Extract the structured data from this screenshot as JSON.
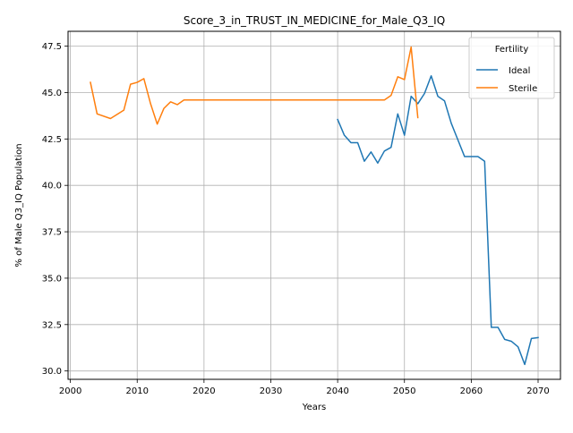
{
  "chart_data": {
    "type": "line",
    "title": "Score_3_in_TRUST_IN_MEDICINE_for_Male_Q3_IQ",
    "xlabel": "Years",
    "ylabel": "% of Male Q3_IQ Population",
    "xlim": [
      1999.65,
      2073.35
    ],
    "ylim": [
      29.55,
      48.3
    ],
    "x_ticks": [
      2000,
      2010,
      2020,
      2030,
      2040,
      2050,
      2060,
      2070
    ],
    "y_ticks": [
      30.0,
      32.5,
      35.0,
      37.5,
      40.0,
      42.5,
      45.0,
      47.5
    ],
    "x_tick_labels": [
      "2000",
      "2010",
      "2020",
      "2030",
      "2040",
      "2050",
      "2060",
      "2070"
    ],
    "y_tick_labels": [
      "30.0",
      "32.5",
      "35.0",
      "37.5",
      "40.0",
      "42.5",
      "45.0",
      "47.5"
    ],
    "grid": true,
    "legend": {
      "title": "Fertility",
      "placement": "top-right"
    },
    "series": [
      {
        "name": "Ideal",
        "color": "#1f77b4",
        "points": [
          [
            2040,
            43.55
          ],
          [
            2041,
            42.7
          ],
          [
            2042,
            42.3
          ],
          [
            2043,
            42.3
          ],
          [
            2044,
            41.3
          ],
          [
            2045,
            41.8
          ],
          [
            2046,
            41.2
          ],
          [
            2047,
            41.85
          ],
          [
            2048,
            42.05
          ],
          [
            2049,
            43.85
          ],
          [
            2050,
            42.7
          ],
          [
            2051,
            44.8
          ],
          [
            2052,
            44.4
          ],
          [
            2053,
            44.95
          ],
          [
            2054,
            45.9
          ],
          [
            2055,
            44.8
          ],
          [
            2056,
            44.55
          ],
          [
            2057,
            43.35
          ],
          [
            2058,
            42.45
          ],
          [
            2059,
            41.55
          ],
          [
            2060,
            41.55
          ],
          [
            2061,
            41.55
          ],
          [
            2062,
            41.3
          ],
          [
            2063,
            32.35
          ],
          [
            2064,
            32.35
          ],
          [
            2065,
            31.7
          ],
          [
            2066,
            31.6
          ],
          [
            2067,
            31.3
          ],
          [
            2068,
            30.35
          ],
          [
            2069,
            31.75
          ],
          [
            2070,
            31.8
          ]
        ]
      },
      {
        "name": "Sterile",
        "color": "#ff7f0e",
        "points": [
          [
            2003,
            45.55
          ],
          [
            2004,
            43.85
          ],
          [
            2006,
            43.6
          ],
          [
            2008,
            44.05
          ],
          [
            2009,
            45.45
          ],
          [
            2010,
            45.55
          ],
          [
            2011,
            45.75
          ],
          [
            2012,
            44.4
          ],
          [
            2013,
            43.3
          ],
          [
            2014,
            44.15
          ],
          [
            2015,
            44.5
          ],
          [
            2016,
            44.35
          ],
          [
            2017,
            44.6
          ],
          [
            2020,
            44.6
          ],
          [
            2030,
            44.6
          ],
          [
            2040,
            44.6
          ],
          [
            2047,
            44.6
          ],
          [
            2048,
            44.85
          ],
          [
            2049,
            45.85
          ],
          [
            2050,
            45.7
          ],
          [
            2051,
            47.45
          ],
          [
            2052,
            43.65
          ]
        ]
      }
    ]
  }
}
